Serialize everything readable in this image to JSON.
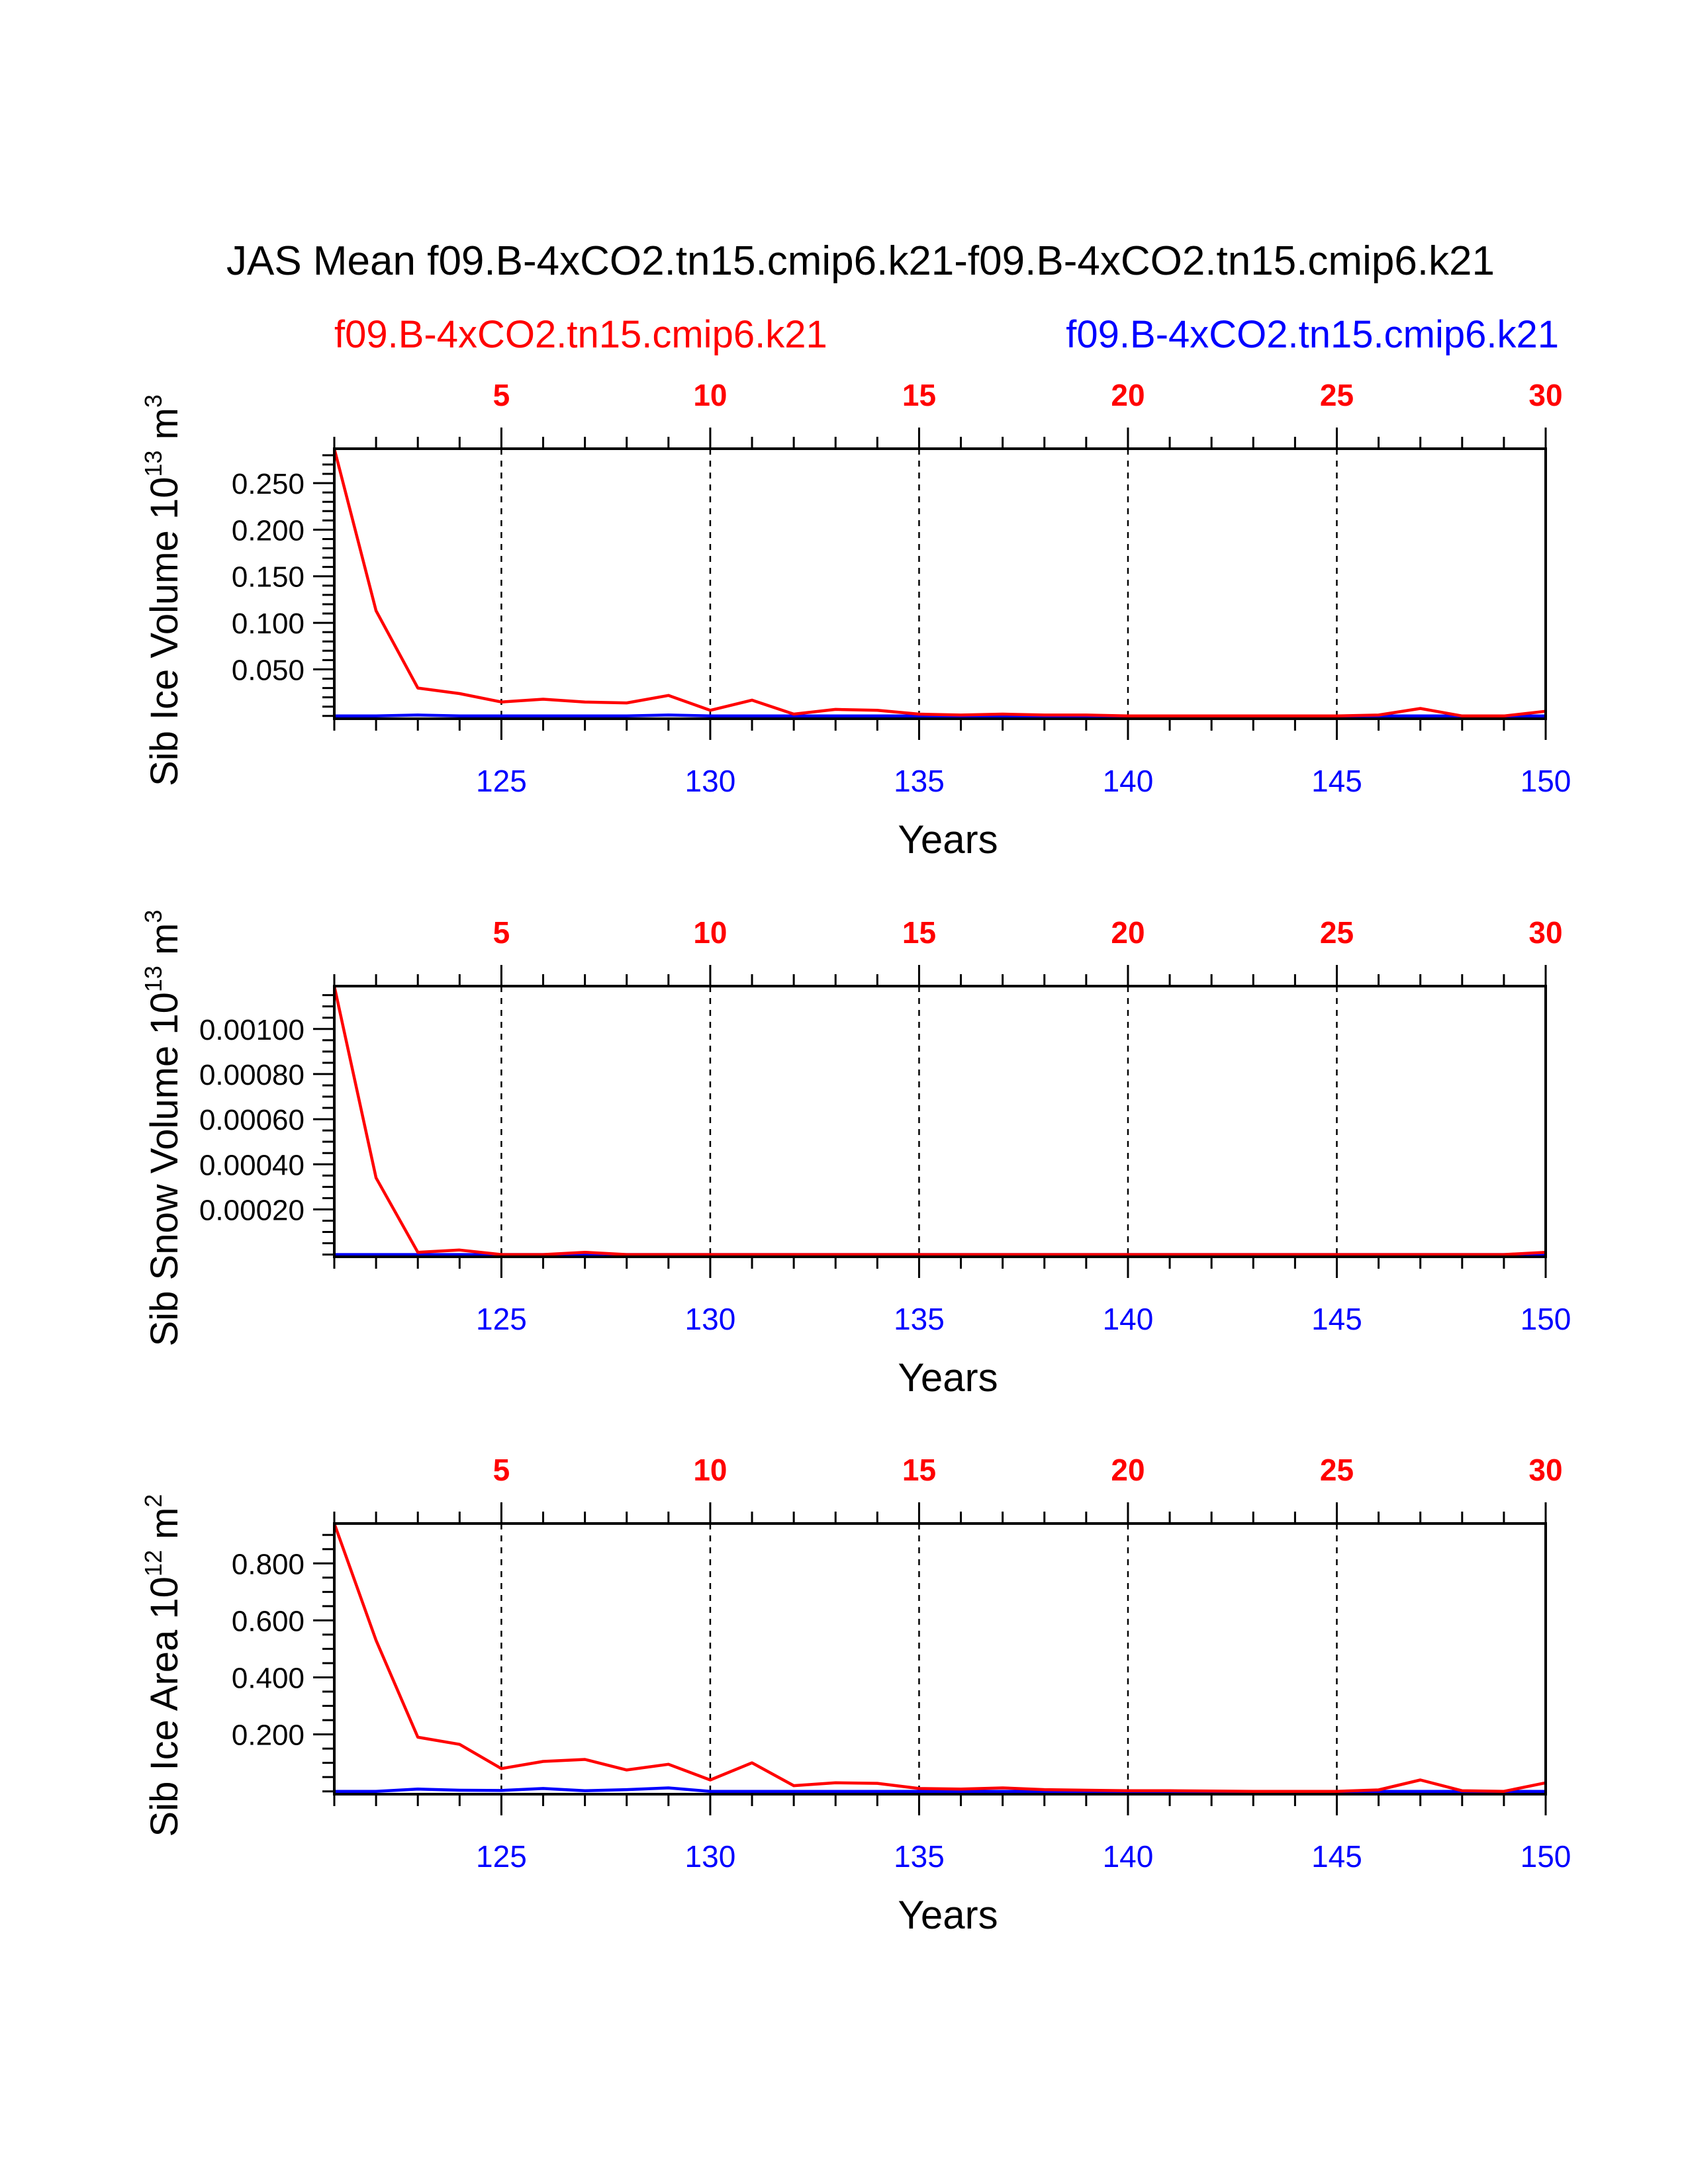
{
  "title": "JAS Mean f09.B-4xCO2.tn15.cmip6.k21-f09.B-4xCO2.tn15.cmip6.k21",
  "legend": {
    "left": "f09.B-4xCO2.tn15.cmip6.k21",
    "right": "f09.B-4xCO2.tn15.cmip6.k21",
    "left_color": "#ff0000",
    "right_color": "#0000ff"
  },
  "colors": {
    "red": "#ff0000",
    "blue": "#0000ff",
    "axis": "#000000"
  },
  "chart_data": [
    {
      "type": "line",
      "ylabel": "Sib Ice Volume 10",
      "ylabel_exp": "13",
      "ylabel_unit": " m",
      "ylabel_unit_exp": "3",
      "xlabel": "Years",
      "xlim": [
        121,
        150
      ],
      "ylim": [
        -0.003,
        0.287
      ],
      "yticks": [
        0.05,
        0.1,
        0.15,
        0.2,
        0.25
      ],
      "ytick_labels": [
        "0.050",
        "0.100",
        "0.150",
        "0.200",
        "0.250"
      ],
      "yminor": 0.01,
      "x_bottom_ticks": [
        125,
        130,
        135,
        140,
        145,
        150
      ],
      "x_bottom_labels": [
        "125",
        "130",
        "135",
        "140",
        "145",
        "150"
      ],
      "x_top_ticks": [
        125,
        130,
        135,
        140,
        145,
        150
      ],
      "x_top_labels": [
        "5",
        "10",
        "15",
        "20",
        "25",
        "30"
      ],
      "dashed_x": [
        125,
        130,
        135,
        140,
        145
      ],
      "series": [
        {
          "name": "f09.B-4xCO2.tn15.cmip6.k21",
          "color": "#ff0000",
          "x": [
            121,
            122,
            123,
            124,
            125,
            126,
            127,
            128,
            129,
            130,
            131,
            132,
            133,
            134,
            135,
            136,
            137,
            138,
            139,
            140,
            141,
            142,
            143,
            144,
            145,
            146,
            147,
            148,
            149,
            150
          ],
          "values": [
            0.287,
            0.113,
            0.03,
            0.024,
            0.015,
            0.018,
            0.015,
            0.014,
            0.022,
            0.006,
            0.017,
            0.002,
            0.007,
            0.006,
            0.002,
            0.001,
            0.002,
            0.001,
            0.001,
            0.0,
            0.0,
            0.0,
            0.0,
            0.0,
            0.0,
            0.001,
            0.008,
            0.0,
            0.0,
            0.005
          ]
        },
        {
          "name": "f09.B-4xCO2.tn15.cmip6.k21",
          "color": "#0000ff",
          "x": [
            121,
            122,
            123,
            124,
            125,
            126,
            127,
            128,
            129,
            130,
            131,
            132,
            133,
            134,
            135,
            136,
            137,
            138,
            139,
            140,
            141,
            142,
            143,
            144,
            145,
            146,
            147,
            148,
            149,
            150
          ],
          "values": [
            0.0,
            0.0,
            0.001,
            0.0,
            0.0,
            0.0,
            0.0,
            0.0,
            0.001,
            0.0,
            0.0,
            0.0,
            0.0,
            0.0,
            0.0,
            0.0,
            0.0,
            0.0,
            0.0,
            0.0,
            0.0,
            0.0,
            0.0,
            0.0,
            0.0,
            0.0,
            0.0,
            0.0,
            0.0,
            0.0
          ]
        }
      ]
    },
    {
      "type": "line",
      "ylabel": "Sib Snow Volume 10",
      "ylabel_exp": "13",
      "ylabel_unit": " m",
      "ylabel_unit_exp": "3",
      "xlabel": "Years",
      "xlim": [
        121,
        150
      ],
      "ylim": [
        -1e-05,
        0.00119
      ],
      "yticks": [
        0.0002,
        0.0004,
        0.0006,
        0.0008,
        0.001
      ],
      "ytick_labels": [
        "0.00020",
        "0.00040",
        "0.00060",
        "0.00080",
        "0.00100"
      ],
      "yminor": 5e-05,
      "x_bottom_ticks": [
        125,
        130,
        135,
        140,
        145,
        150
      ],
      "x_bottom_labels": [
        "125",
        "130",
        "135",
        "140",
        "145",
        "150"
      ],
      "x_top_ticks": [
        125,
        130,
        135,
        140,
        145,
        150
      ],
      "x_top_labels": [
        "5",
        "10",
        "15",
        "20",
        "25",
        "30"
      ],
      "dashed_x": [
        125,
        130,
        135,
        140,
        145
      ],
      "series": [
        {
          "name": "f09.B-4xCO2.tn15.cmip6.k21",
          "color": "#ff0000",
          "x": [
            121,
            122,
            123,
            124,
            125,
            126,
            127,
            128,
            129,
            130,
            131,
            132,
            133,
            134,
            135,
            136,
            137,
            138,
            139,
            140,
            141,
            142,
            143,
            144,
            145,
            146,
            147,
            148,
            149,
            150
          ],
          "values": [
            0.00119,
            0.00034,
            1e-05,
            2e-05,
            0.0,
            0.0,
            1e-05,
            0.0,
            0.0,
            0.0,
            0.0,
            0.0,
            0.0,
            0.0,
            0.0,
            0.0,
            0.0,
            0.0,
            0.0,
            0.0,
            0.0,
            0.0,
            0.0,
            0.0,
            0.0,
            0.0,
            0.0,
            0.0,
            0.0,
            1e-05
          ]
        },
        {
          "name": "f09.B-4xCO2.tn15.cmip6.k21",
          "color": "#0000ff",
          "x": [
            121,
            122,
            123,
            124,
            125,
            126,
            127,
            128,
            129,
            130,
            131,
            132,
            133,
            134,
            135,
            136,
            137,
            138,
            139,
            140,
            141,
            142,
            143,
            144,
            145,
            146,
            147,
            148,
            149,
            150
          ],
          "values": [
            0,
            0,
            0,
            0,
            0,
            0,
            0,
            0,
            0,
            0,
            0,
            0,
            0,
            0,
            0,
            0,
            0,
            0,
            0,
            0,
            0,
            0,
            0,
            0,
            0,
            0,
            0,
            0,
            0,
            0
          ]
        }
      ]
    },
    {
      "type": "line",
      "ylabel": "Sib Ice Area 10",
      "ylabel_exp": "12",
      "ylabel_unit": " m",
      "ylabel_unit_exp": "2",
      "xlabel": "Years",
      "xlim": [
        121,
        150
      ],
      "ylim": [
        -0.01,
        0.94
      ],
      "yticks": [
        0.2,
        0.4,
        0.6,
        0.8
      ],
      "ytick_labels": [
        "0.200",
        "0.400",
        "0.600",
        "0.800"
      ],
      "yminor": 0.05,
      "x_bottom_ticks": [
        125,
        130,
        135,
        140,
        145,
        150
      ],
      "x_bottom_labels": [
        "125",
        "130",
        "135",
        "140",
        "145",
        "150"
      ],
      "x_top_ticks": [
        125,
        130,
        135,
        140,
        145,
        150
      ],
      "x_top_labels": [
        "5",
        "10",
        "15",
        "20",
        "25",
        "30"
      ],
      "dashed_x": [
        125,
        130,
        135,
        140,
        145
      ],
      "series": [
        {
          "name": "f09.B-4xCO2.tn15.cmip6.k21",
          "color": "#ff0000",
          "x": [
            121,
            122,
            123,
            124,
            125,
            126,
            127,
            128,
            129,
            130,
            131,
            132,
            133,
            134,
            135,
            136,
            137,
            138,
            139,
            140,
            141,
            142,
            143,
            144,
            145,
            146,
            147,
            148,
            149,
            150
          ],
          "values": [
            0.94,
            0.53,
            0.19,
            0.165,
            0.08,
            0.105,
            0.112,
            0.075,
            0.095,
            0.04,
            0.1,
            0.02,
            0.03,
            0.028,
            0.01,
            0.008,
            0.012,
            0.006,
            0.004,
            0.002,
            0.002,
            0.001,
            0.0,
            0.0,
            0.0,
            0.005,
            0.04,
            0.002,
            0.0,
            0.03
          ]
        },
        {
          "name": "f09.B-4xCO2.tn15.cmip6.k21",
          "color": "#0000ff",
          "x": [
            121,
            122,
            123,
            124,
            125,
            126,
            127,
            128,
            129,
            130,
            131,
            132,
            133,
            134,
            135,
            136,
            137,
            138,
            139,
            140,
            141,
            142,
            143,
            144,
            145,
            146,
            147,
            148,
            149,
            150
          ],
          "values": [
            0.0,
            0.0,
            0.008,
            0.004,
            0.003,
            0.01,
            0.002,
            0.006,
            0.012,
            0.0,
            0.0,
            0.0,
            0.0,
            0.0,
            0.0,
            0.0,
            0.0,
            0.0,
            0.0,
            0.0,
            0.0,
            0.0,
            0.0,
            0.0,
            0.0,
            0.0,
            0.0,
            0.0,
            0.0,
            0.0
          ]
        }
      ]
    }
  ]
}
